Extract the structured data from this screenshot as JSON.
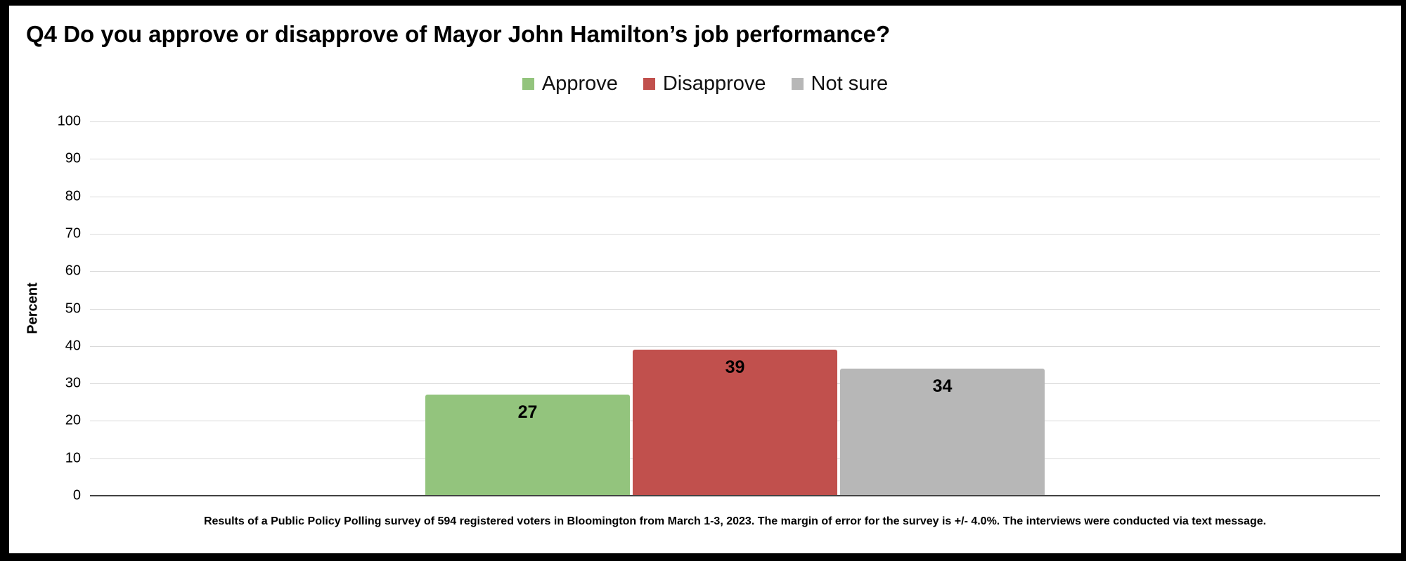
{
  "title": "Q4 Do you approve or disapprove of Mayor John Hamilton’s job performance?",
  "legend": {
    "items": [
      {
        "label": "Approve",
        "color": "#93c47d"
      },
      {
        "label": "Disapprove",
        "color": "#c1504d"
      },
      {
        "label": "Not sure",
        "color": "#b7b7b7"
      }
    ],
    "position": "top-center"
  },
  "chart_data": {
    "type": "bar",
    "title": "Q4 Do you approve or disapprove of Mayor John Hamilton’s job performance?",
    "categories": [
      "Approve",
      "Disapprove",
      "Not sure"
    ],
    "values": [
      27,
      39,
      34
    ],
    "colors": [
      "#93c47d",
      "#c1504d",
      "#b7b7b7"
    ],
    "xlabel": "",
    "ylabel": "Percent",
    "ylim": [
      0,
      100
    ],
    "yticks": [
      0,
      10,
      20,
      30,
      40,
      50,
      60,
      70,
      80,
      90,
      100
    ],
    "grid": "horizontal",
    "gridline_color": "#d9d9d9",
    "axis_line_color": "#424242",
    "legend_position": "top"
  },
  "footer": {
    "source_note": "Results of a Public Policy Polling survey of 594 registered voters in Bloomington from March 1-3, 2023. The margin of error for the survey is +/- 4.0%. The interviews were conducted via text message."
  }
}
